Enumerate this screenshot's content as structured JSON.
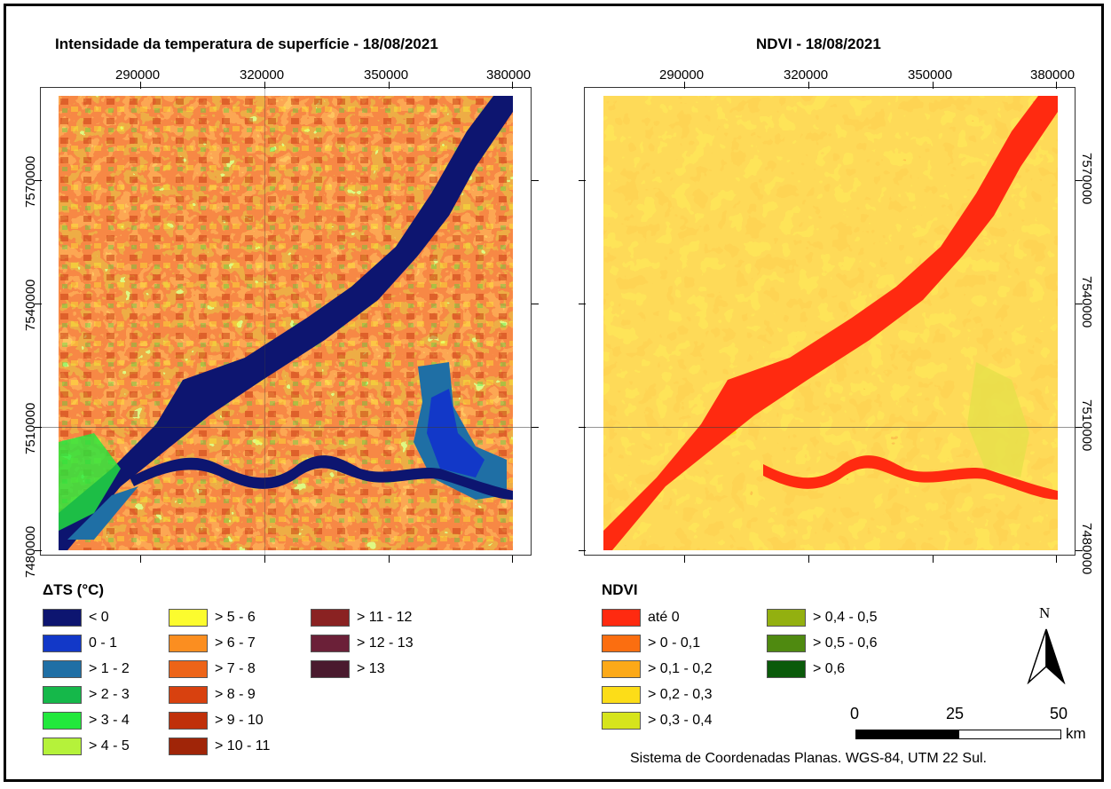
{
  "titles": {
    "left": "Intensidade da temperatura de superfície - 18/08/2021",
    "right": "NDVI - 18/08/2021"
  },
  "axes": {
    "x_ticks": [
      "290000",
      "320000",
      "350000",
      "380000"
    ],
    "y_ticks": [
      "7570000",
      "7540000",
      "7510000",
      "7480000"
    ]
  },
  "legend_ts": {
    "title": "ΔTS (°C)",
    "items": [
      {
        "label": "< 0",
        "color": "#0d1570"
      },
      {
        "label": "0 - 1",
        "color": "#1238c8"
      },
      {
        "label": "> 1 - 2",
        "color": "#1f6fa5"
      },
      {
        "label": "> 2 - 3",
        "color": "#15b84a"
      },
      {
        "label": "> 3 - 4",
        "color": "#22e83c"
      },
      {
        "label": "> 4 - 5",
        "color": "#b5f23a"
      },
      {
        "label": "> 5 - 6",
        "color": "#fcfc2e"
      },
      {
        "label": "> 6 - 7",
        "color": "#fb8e20"
      },
      {
        "label": "> 7 - 8",
        "color": "#ed6418"
      },
      {
        "label": "> 8 - 9",
        "color": "#d8410f"
      },
      {
        "label": "> 9 - 10",
        "color": "#c0300a"
      },
      {
        "label": "> 10 - 11",
        "color": "#a02508"
      },
      {
        "label": "> 11 - 12",
        "color": "#8a2222"
      },
      {
        "label": "> 12 - 13",
        "color": "#6b2038"
      },
      {
        "label": "> 13",
        "color": "#4a1a2e"
      }
    ]
  },
  "legend_ndvi": {
    "title": "NDVI",
    "items": [
      {
        "label": "até 0",
        "color": "#ff2a10"
      },
      {
        "label": "> 0 - 0,1",
        "color": "#fb6e10"
      },
      {
        "label": "> 0,1 - 0,2",
        "color": "#fca918"
      },
      {
        "label": "> 0,2 - 0,3",
        "color": "#fcdd18"
      },
      {
        "label": "> 0,3 - 0,4",
        "color": "#d6e41c"
      },
      {
        "label": "> 0,4 - 0,5",
        "color": "#93b010"
      },
      {
        "label": "> 0,5 - 0,6",
        "color": "#4f8a10"
      },
      {
        "label": "> 0,6",
        "color": "#0a5a0a"
      }
    ]
  },
  "scale": {
    "labels": [
      "0",
      "25",
      "50"
    ],
    "unit": "km"
  },
  "north": "N",
  "footer": "Sistema de Coordenadas Planas. WGS-84, UTM 22 Sul."
}
